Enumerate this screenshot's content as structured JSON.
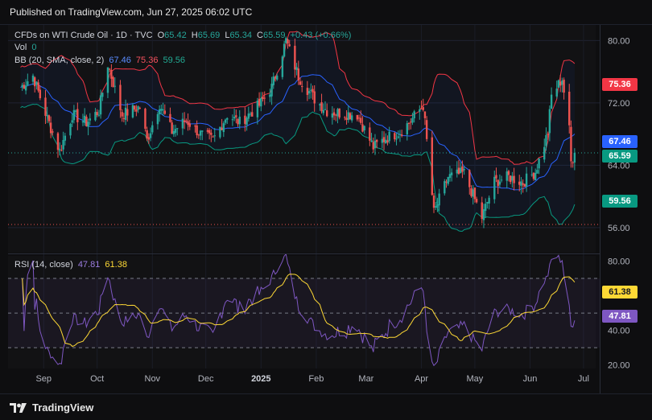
{
  "header": {
    "published": "Published on TradingView.com, Jun 27, 2025 06:02 UTC"
  },
  "legend": {
    "symbol": "CFDs on WTI Crude Oil · 1D · TVC",
    "o_label": "O",
    "o": "65.42",
    "h_label": "H",
    "h": "65.69",
    "l_label": "L",
    "l": "65.34",
    "c_label": "C",
    "c": "65.59",
    "change": "+0.43 (+0.66%)",
    "vol_label": "Vol",
    "vol": "0",
    "bb_label": "BB (20, SMA, close, 2)",
    "bb_basis": "67.46",
    "bb_upper": "75.36",
    "bb_lower": "59.56",
    "rsi_label": "RSI (14, close)",
    "rsi": "47.81",
    "rsi_ma": "61.38"
  },
  "colors": {
    "up": "#26a69a",
    "down": "#ef5350",
    "bb_basis": "#2962ff",
    "bb_upper": "#f23645",
    "bb_lower": "#089981",
    "rsi": "#7e57c2",
    "rsi_ma": "#fdd835"
  },
  "chart_data": [
    {
      "type": "candlestick",
      "title": "CFDs on WTI Crude Oil · 1D · TVC",
      "y_ticks": [
        "80.00",
        "72.00",
        "64.00",
        "56.00"
      ],
      "ylim": [
        53,
        82
      ],
      "x_ticks": [
        "Sep",
        "Oct",
        "Nov",
        "Dec",
        "2025",
        "Feb",
        "Mar",
        "Apr",
        "May",
        "Jun",
        "Jul"
      ],
      "price_labels": [
        {
          "name": "bb_upper",
          "value": "75.36"
        },
        {
          "name": "bb_basis",
          "value": "67.46"
        },
        {
          "name": "last",
          "value": "65.59"
        },
        {
          "name": "bb_lower",
          "value": "59.56"
        }
      ],
      "keypoints": [
        {
          "date": "Aug 19",
          "close": 74.0
        },
        {
          "date": "Aug 26",
          "close": 75.5
        },
        {
          "date": "Sep 3",
          "close": 70.0
        },
        {
          "date": "Sep 10",
          "close": 65.8
        },
        {
          "date": "Sep 17",
          "close": 70.5
        },
        {
          "date": "Sep 25",
          "close": 69.5
        },
        {
          "date": "Oct 2",
          "close": 71.0
        },
        {
          "date": "Oct 7",
          "close": 77.0
        },
        {
          "date": "Oct 15",
          "close": 70.5
        },
        {
          "date": "Oct 25",
          "close": 71.5
        },
        {
          "date": "Oct 29",
          "close": 67.2
        },
        {
          "date": "Nov 5",
          "close": 71.9
        },
        {
          "date": "Nov 12",
          "close": 68.3
        },
        {
          "date": "Nov 20",
          "close": 69.8
        },
        {
          "date": "Nov 28",
          "close": 68.0
        },
        {
          "date": "Dec 5",
          "close": 67.2
        },
        {
          "date": "Dec 13",
          "close": 70.5
        },
        {
          "date": "Dec 20",
          "close": 69.5
        },
        {
          "date": "Dec 31",
          "close": 71.7
        },
        {
          "date": "Jan 7",
          "close": 74.0
        },
        {
          "date": "Jan 15",
          "close": 80.0
        },
        {
          "date": "Jan 22",
          "close": 75.4
        },
        {
          "date": "Jan 31",
          "close": 72.5
        },
        {
          "date": "Feb 7",
          "close": 71.0
        },
        {
          "date": "Feb 14",
          "close": 70.7
        },
        {
          "date": "Feb 24",
          "close": 70.5
        },
        {
          "date": "Mar 5",
          "close": 66.3
        },
        {
          "date": "Mar 12",
          "close": 67.5
        },
        {
          "date": "Mar 20",
          "close": 68.3
        },
        {
          "date": "Mar 26",
          "close": 69.7
        },
        {
          "date": "Apr 2",
          "close": 71.7
        },
        {
          "date": "Apr 8",
          "close": 57.9
        },
        {
          "date": "Apr 16",
          "close": 62.5
        },
        {
          "date": "Apr 25",
          "close": 63.0
        },
        {
          "date": "May 5",
          "close": 57.3
        },
        {
          "date": "May 12",
          "close": 61.9
        },
        {
          "date": "May 20",
          "close": 62.5
        },
        {
          "date": "May 28",
          "close": 61.8
        },
        {
          "date": "Jun 4",
          "close": 63.2
        },
        {
          "date": "Jun 11",
          "close": 68.2
        },
        {
          "date": "Jun 13",
          "close": 72.9
        },
        {
          "date": "Jun 19",
          "close": 75.1
        },
        {
          "date": "Jun 23",
          "close": 68.5
        },
        {
          "date": "Jun 24",
          "close": 64.4
        },
        {
          "date": "Jun 26",
          "close": 65.59
        }
      ]
    },
    {
      "type": "line",
      "title": "RSI (14, close)",
      "y_ticks": [
        "80.00",
        "40.00",
        "20.00"
      ],
      "ylim": [
        18,
        83
      ],
      "levels": [
        70,
        50,
        30
      ],
      "series": [
        {
          "name": "RSI",
          "last": "47.81"
        },
        {
          "name": "RSI MA",
          "last": "61.38"
        }
      ]
    }
  ]
}
